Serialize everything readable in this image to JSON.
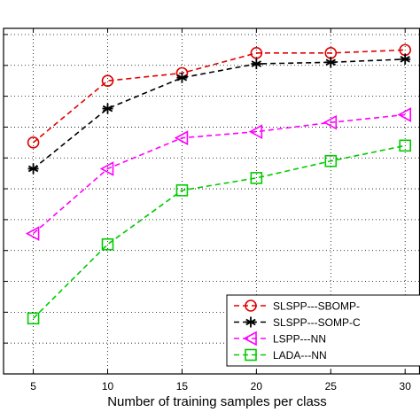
{
  "chart_data": {
    "type": "line",
    "title": "",
    "xlabel": "Number of training samples per class",
    "ylabel": "",
    "x": [
      5,
      10,
      15,
      20,
      25,
      30
    ],
    "xticks": [
      "5",
      "10",
      "15",
      "20",
      "25",
      "30"
    ],
    "xlim": [
      3,
      31
    ],
    "ylim": [
      0,
      11.2
    ],
    "grid": true,
    "legend_position": "bottom-right",
    "series": [
      {
        "name": "SLSPP---SBOMP-",
        "color": "#e00000",
        "marker": "circle",
        "values": [
          7.5,
          9.5,
          9.75,
          10.4,
          10.4,
          10.5
        ]
      },
      {
        "name": "SLSPP---SOMP-C",
        "color": "#000000",
        "marker": "asterisk",
        "values": [
          6.65,
          8.6,
          9.6,
          10.05,
          10.1,
          10.2
        ]
      },
      {
        "name": "LSPP---NN",
        "color": "#ff00ff",
        "marker": "triangle-left",
        "values": [
          4.55,
          6.65,
          7.65,
          7.85,
          8.15,
          8.4
        ]
      },
      {
        "name": "LADA---NN",
        "color": "#00cc00",
        "marker": "square",
        "values": [
          1.8,
          4.2,
          5.95,
          6.35,
          6.9,
          7.4
        ]
      }
    ]
  }
}
